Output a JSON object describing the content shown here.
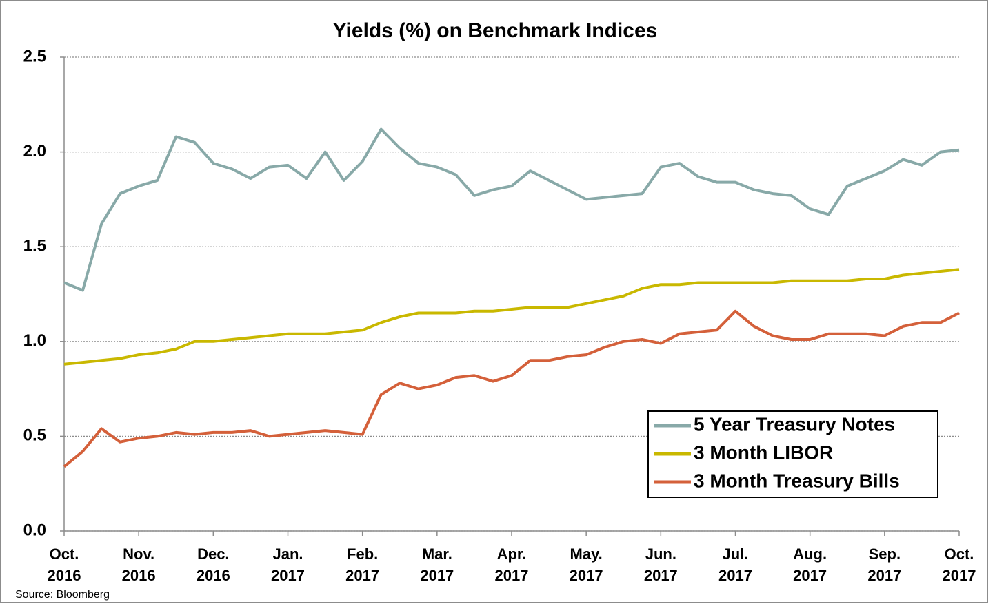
{
  "chart_data": {
    "type": "line",
    "title": "Yields (%) on Benchmark Indices",
    "source": "Source: Bloomberg",
    "categories": [
      "Oct. 2016",
      null,
      null,
      null,
      "Nov. 2016",
      null,
      null,
      null,
      "Dec. 2016",
      null,
      null,
      null,
      "Jan. 2017",
      null,
      null,
      null,
      "Feb. 2017",
      null,
      null,
      null,
      "Mar. 2017",
      null,
      null,
      null,
      "Apr. 2017",
      null,
      null,
      null,
      "May. 2017",
      null,
      null,
      null,
      "Jun. 2017",
      null,
      null,
      null,
      "Jul. 2017",
      null,
      null,
      null,
      "Aug. 2017",
      null,
      null,
      null,
      "Sep. 2017",
      null,
      null,
      null,
      "Oct. 2017"
    ],
    "series": [
      {
        "name": "5 Year Treasury Notes",
        "color": "#88a9a8",
        "values": [
          1.31,
          1.27,
          1.62,
          1.78,
          1.82,
          1.85,
          2.08,
          2.05,
          1.94,
          1.91,
          1.86,
          1.92,
          1.93,
          1.86,
          2.0,
          1.85,
          1.95,
          2.12,
          2.02,
          1.94,
          1.92,
          1.88,
          1.77,
          1.8,
          1.82,
          1.9,
          1.85,
          1.8,
          1.75,
          1.76,
          1.77,
          1.78,
          1.92,
          1.94,
          1.87,
          1.84,
          1.84,
          1.8,
          1.78,
          1.77,
          1.7,
          1.67,
          1.82,
          1.86,
          1.9,
          1.96,
          1.93,
          2.0,
          2.01
        ]
      },
      {
        "name": "3 Month LIBOR",
        "color": "#c9b800",
        "values": [
          0.88,
          0.89,
          0.9,
          0.91,
          0.93,
          0.94,
          0.96,
          1.0,
          1.0,
          1.01,
          1.02,
          1.03,
          1.04,
          1.04,
          1.04,
          1.05,
          1.06,
          1.1,
          1.13,
          1.15,
          1.15,
          1.15,
          1.16,
          1.16,
          1.17,
          1.18,
          1.18,
          1.18,
          1.2,
          1.22,
          1.24,
          1.28,
          1.3,
          1.3,
          1.31,
          1.31,
          1.31,
          1.31,
          1.31,
          1.32,
          1.32,
          1.32,
          1.32,
          1.33,
          1.33,
          1.35,
          1.36,
          1.37,
          1.38
        ]
      },
      {
        "name": "3 Month Treasury Bills",
        "color": "#d4603a",
        "values": [
          0.34,
          0.42,
          0.54,
          0.47,
          0.49,
          0.5,
          0.52,
          0.51,
          0.52,
          0.52,
          0.53,
          0.5,
          0.51,
          0.52,
          0.53,
          0.52,
          0.51,
          0.72,
          0.78,
          0.75,
          0.77,
          0.81,
          0.82,
          0.79,
          0.82,
          0.9,
          0.9,
          0.92,
          0.93,
          0.97,
          1.0,
          1.01,
          0.99,
          1.04,
          1.05,
          1.06,
          1.16,
          1.08,
          1.03,
          1.01,
          1.01,
          1.04,
          1.04,
          1.04,
          1.03,
          1.08,
          1.1,
          1.1,
          1.15
        ]
      }
    ],
    "ylim": [
      0,
      2.5
    ],
    "yticks": [
      {
        "value": 0,
        "label": "0.0"
      },
      0.5,
      {
        "value": 1,
        "label": "1.0"
      },
      1.5,
      {
        "value": 2,
        "label": "2.0"
      },
      2.5
    ],
    "grid": true,
    "legend": "lower right"
  }
}
